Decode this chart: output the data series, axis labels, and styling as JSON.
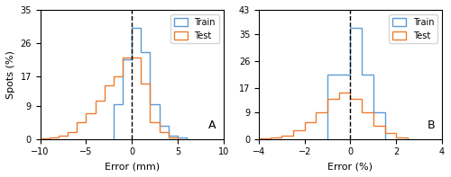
{
  "panel_A": {
    "title_label": "A",
    "xlabel": "Error (mm)",
    "ylabel": "Spots (%)",
    "xlim": [
      -10,
      10
    ],
    "ylim": [
      0.0,
      35.0
    ],
    "yticks": [
      0.0,
      9.0,
      17.0,
      26.0,
      35.0
    ],
    "xticks": [
      -10,
      -5,
      0,
      5,
      10
    ],
    "dashed_x": 0,
    "train_edges": [
      -2,
      -1,
      0,
      1,
      2,
      3,
      4,
      5,
      6
    ],
    "train_vals": [
      9.5,
      21.5,
      30.0,
      23.5,
      9.5,
      3.5,
      1.0,
      0.5
    ],
    "test_edges": [
      -10,
      -9,
      -8,
      -7,
      -6,
      -5,
      -4,
      -3,
      -2,
      -1,
      0,
      1,
      2,
      3,
      4,
      5
    ],
    "test_vals": [
      0.3,
      0.5,
      1.0,
      2.0,
      4.5,
      7.0,
      10.5,
      14.5,
      17.0,
      22.0,
      22.0,
      15.0,
      4.5,
      2.0,
      0.5
    ]
  },
  "panel_B": {
    "title_label": "B",
    "xlabel": "Error (%)",
    "xlim": [
      -4,
      4
    ],
    "ylim": [
      0.0,
      43.0
    ],
    "yticks": [
      0.0,
      9.0,
      17.0,
      26.0,
      35.0,
      43.0
    ],
    "xticks": [
      -4,
      -2,
      0,
      2,
      4
    ],
    "dashed_x": 0,
    "train_edges": [
      -1.0,
      -0.5,
      0.0,
      0.5,
      1.0,
      1.5
    ],
    "train_vals": [
      21.5,
      21.5,
      37.0,
      21.5,
      9.0
    ],
    "test_edges": [
      -4.0,
      -3.5,
      -3.0,
      -2.5,
      -2.0,
      -1.5,
      -1.0,
      -0.5,
      0.0,
      0.5,
      1.0,
      1.5,
      2.0,
      2.5
    ],
    "test_vals": [
      0.3,
      0.5,
      1.0,
      3.0,
      5.5,
      9.0,
      13.5,
      15.5,
      13.5,
      9.0,
      4.5,
      2.0,
      0.5
    ]
  },
  "train_color": "#5b9bd5",
  "test_color": "#ed7d31",
  "figsize": [
    5.0,
    1.97
  ],
  "dpi": 100
}
